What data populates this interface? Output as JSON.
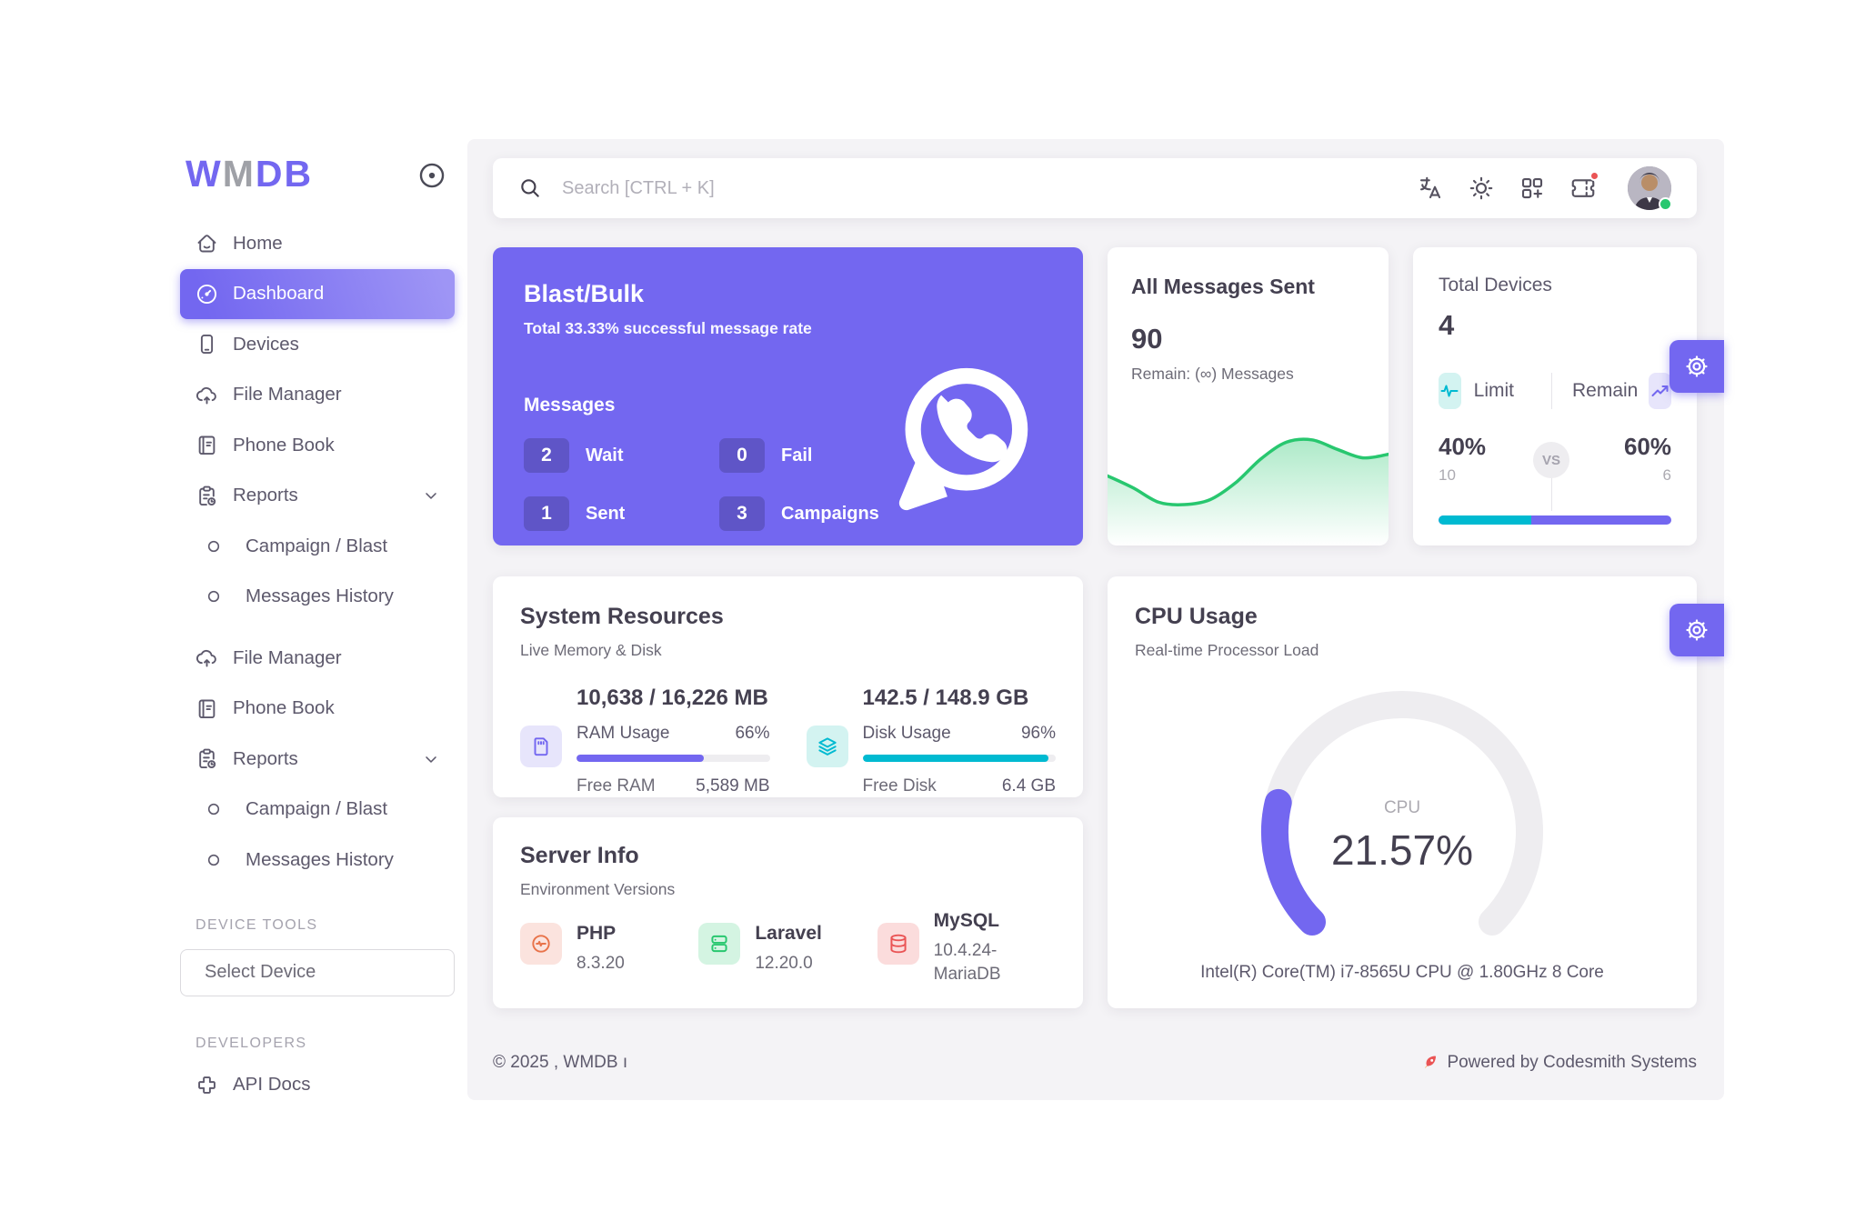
{
  "brand": {
    "logo_parts": [
      "W",
      "M",
      "DB"
    ]
  },
  "sidebar": {
    "items": [
      {
        "label": "Home"
      },
      {
        "label": "Dashboard"
      },
      {
        "label": "Devices"
      },
      {
        "label": "File Manager"
      },
      {
        "label": "Phone Book"
      },
      {
        "label": "Reports"
      },
      {
        "label": "Campaign / Blast"
      },
      {
        "label": "Messages History"
      },
      {
        "label": "File Manager"
      },
      {
        "label": "Phone Book"
      },
      {
        "label": "Reports"
      },
      {
        "label": "Campaign / Blast"
      },
      {
        "label": "Messages History"
      }
    ],
    "device_tools_header": "DEVICE TOOLS",
    "select_device_label": "Select Device",
    "developers_header": "DEVELOPERS",
    "api_docs_label": "API Docs"
  },
  "header": {
    "search_placeholder": "Search [CTRL + K]"
  },
  "cards": {
    "blast": {
      "title": "Blast/Bulk",
      "subtitle": "Total 33.33% successful message rate",
      "section_label": "Messages",
      "stats": [
        {
          "value": "2",
          "label": "Wait"
        },
        {
          "value": "0",
          "label": "Fail"
        },
        {
          "value": "1",
          "label": "Sent"
        },
        {
          "value": "3",
          "label": "Campaigns"
        }
      ]
    },
    "messages_sent": {
      "title": "All Messages Sent",
      "total": "90",
      "remain_label": "Remain: (∞) Messages"
    },
    "total_devices": {
      "title": "Total Devices",
      "count": "4",
      "limit_label": "Limit",
      "remain_label": "Remain",
      "vs_label": "VS",
      "limit_pct": "40%",
      "remain_pct": "60%",
      "limit_value": "10",
      "remain_value": "6"
    },
    "system_resources": {
      "title": "System Resources",
      "subtitle": "Live Memory & Disk",
      "ram": {
        "usage": "10,638 / 16,226 MB",
        "label": "RAM Usage",
        "pct": "66%",
        "free_label": "Free RAM",
        "free_value": "5,589 MB"
      },
      "disk": {
        "usage": "142.5 / 148.9 GB",
        "label": "Disk Usage",
        "pct": "96%",
        "free_label": "Free Disk",
        "free_value": "6.4 GB"
      }
    },
    "server_info": {
      "title": "Server Info",
      "subtitle": "Environment Versions",
      "items": [
        {
          "name": "PHP",
          "version": "8.3.20"
        },
        {
          "name": "Laravel",
          "version": "12.20.0"
        },
        {
          "name": "MySQL",
          "version": "10.4.24-MariaDB"
        }
      ]
    },
    "cpu": {
      "title": "CPU Usage",
      "subtitle": "Real-time Processor Load",
      "gauge_label": "CPU",
      "value": "21.57%",
      "cpu_name": "Intel(R) Core(TM) i7-8565U CPU @ 1.80GHz 8 Core"
    }
  },
  "footer": {
    "copyright": "© 2025 , WMDB ı",
    "powered_by": "Powered by Codesmith Systems"
  },
  "colors": {
    "primary": "#7367f0",
    "success": "#28c76f",
    "teal": "#00bad1",
    "danger": "#ea5455",
    "main_bg": "#f4f3f6"
  },
  "chart_data": [
    {
      "type": "area",
      "name": "messages-sparkline",
      "title": "All Messages Sent trend",
      "values": [
        52,
        42,
        30,
        28,
        32,
        46,
        66,
        80,
        82,
        74,
        67,
        70
      ],
      "color": "#28c76f",
      "axes": "hidden",
      "grid": false
    },
    {
      "type": "gauge",
      "name": "cpu-gauge",
      "label": "CPU",
      "value": 21.57,
      "max": 100,
      "arc_degrees": 270,
      "color": "#7367f0",
      "track_color": "#eeedf0"
    },
    {
      "type": "progress",
      "name": "ram-usage",
      "value": 66,
      "color": "#7367f0"
    },
    {
      "type": "progress",
      "name": "disk-usage",
      "value": 96,
      "color": "#00bad1"
    },
    {
      "type": "progress",
      "name": "device-limit",
      "value": 40,
      "remain": 60,
      "colors": [
        "#00bad1",
        "#7367f0"
      ]
    }
  ]
}
